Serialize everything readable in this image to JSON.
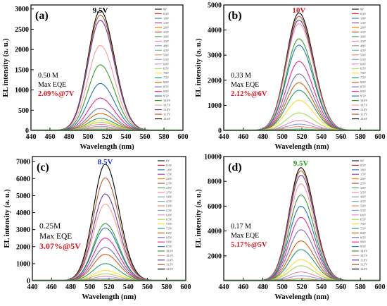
{
  "chart_data": [
    {
      "type": "line",
      "panel_label": "(a)",
      "xlabel": "Wavelength (nm)",
      "ylabel": "EL intensity (a. u.)",
      "xlim": [
        440,
        600
      ],
      "ylim": [
        0,
        3100
      ],
      "xticks": [
        440,
        460,
        480,
        500,
        520,
        540,
        560,
        580,
        600
      ],
      "yticks": [
        0,
        500,
        1000,
        1500,
        2000,
        2500,
        3000
      ],
      "peak_label": "9.5V",
      "peak_label_color": "#000000",
      "peak_wavelength": 513,
      "width": 13,
      "annotations": [
        {
          "text": "0.50 M",
          "color": "#000000",
          "style": "normal"
        },
        {
          "text": "Max EQE",
          "color": "#000000",
          "style": "normal"
        },
        {
          "text": "2.09%@7V",
          "color": "#e0141e",
          "style": "bold"
        }
      ],
      "legend": [
        "0V",
        "0.5V",
        "1.0V",
        "1.5V",
        "2.0V",
        "2.5V",
        "3.0V",
        "3.5V",
        "4.0V",
        "4.5V",
        "5.0V",
        "5.5V",
        "6.0V",
        "6.5V",
        "7.0V",
        "7.5V",
        "8.0V",
        "8.5V",
        "9.0V",
        "9.5V",
        "10.0V",
        "10.5V",
        "11.0V",
        "11.5V",
        "12.0V"
      ],
      "colors": [
        "#222222",
        "#e41a1c",
        "#377eb8",
        "#984ea3",
        "#ff7f00",
        "#a65628",
        "#4daf4a",
        "#f781bf",
        "#999999",
        "#66c2a5",
        "#fc8d62",
        "#8da0cb",
        "#e78ac3",
        "#a6d854",
        "#ffd92f",
        "#1b9e77",
        "#d95f02",
        "#7570b3",
        "#e7298a",
        "#1f78b4",
        "#33a02c",
        "#fb9a99",
        "#6a3d9a",
        "#b15928",
        "#000000"
      ],
      "series": [
        {
          "name": "12.0V",
          "peak": 2960
        },
        {
          "name": "11.5V",
          "peak": 2850
        },
        {
          "name": "11.0V",
          "peak": 2720
        },
        {
          "name": "10.5V",
          "peak": 2100
        },
        {
          "name": "10.0V",
          "peak": 1620
        },
        {
          "name": "9.5V",
          "peak": 1160
        },
        {
          "name": "9.0V",
          "peak": 800
        },
        {
          "name": "8.5V",
          "peak": 550
        },
        {
          "name": "8.0V",
          "peak": 420
        },
        {
          "name": "7.5V",
          "peak": 300
        },
        {
          "name": "7.0V",
          "peak": 240
        },
        {
          "name": "6.5V",
          "peak": 200
        },
        {
          "name": "6.0V",
          "peak": 150
        },
        {
          "name": "5.5V",
          "peak": 100
        },
        {
          "name": "5.0V",
          "peak": 60
        },
        {
          "name": "4.5V",
          "peak": 30
        },
        {
          "name": "4.0V",
          "peak": 10
        }
      ]
    },
    {
      "type": "line",
      "panel_label": "(b)",
      "xlabel": "Wavelength (nm)",
      "ylabel": "EL intensity (a. u.)",
      "xlim": [
        440,
        600
      ],
      "ylim": [
        0,
        5000
      ],
      "xticks": [
        440,
        460,
        480,
        500,
        520,
        540,
        560,
        580,
        600
      ],
      "yticks": [
        0,
        1000,
        2000,
        3000,
        4000,
        5000
      ],
      "peak_label": "10V",
      "peak_label_color": "#e0141e",
      "peak_wavelength": 517,
      "width": 13,
      "annotations": [
        {
          "text": "0.33 M",
          "color": "#000000",
          "style": "normal"
        },
        {
          "text": "Max EQE",
          "color": "#000000",
          "style": "normal"
        },
        {
          "text": "2.12%@6V",
          "color": "#e0141e",
          "style": "bold"
        }
      ],
      "legend": [
        "0V",
        "0.5V",
        "1.0V",
        "1.5V",
        "2.0V",
        "2.5V",
        "3.0V",
        "3.5V",
        "4.0V",
        "4.5V",
        "5.0V",
        "5.5V",
        "6.0V",
        "6.5V",
        "7.0V",
        "7.5V",
        "8.0V",
        "8.5V",
        "9.0V",
        "9.5V",
        "10.0V",
        "10.5V",
        "11.0V",
        "11.5V",
        "12.0V"
      ],
      "colors": [
        "#222222",
        "#e41a1c",
        "#377eb8",
        "#984ea3",
        "#ff7f00",
        "#a65628",
        "#4daf4a",
        "#f781bf",
        "#999999",
        "#66c2a5",
        "#fc8d62",
        "#8da0cb",
        "#e78ac3",
        "#a6d854",
        "#ffd92f",
        "#1b9e77",
        "#d95f02",
        "#7570b3",
        "#e7298a",
        "#1f78b4",
        "#33a02c",
        "#fb9a99",
        "#6a3d9a",
        "#b15928",
        "#000000"
      ],
      "series": [
        {
          "name": "12.0V",
          "peak": 4680
        },
        {
          "name": "11.5V",
          "peak": 4550
        },
        {
          "name": "11.0V",
          "peak": 4400
        },
        {
          "name": "10.5V",
          "peak": 4250
        },
        {
          "name": "10.0V",
          "peak": 3650
        },
        {
          "name": "9.5V",
          "peak": 3400
        },
        {
          "name": "9.0V",
          "peak": 2750
        },
        {
          "name": "8.5V",
          "peak": 2250
        },
        {
          "name": "8.0V",
          "peak": 1900
        },
        {
          "name": "7.5V",
          "peak": 1600
        },
        {
          "name": "7.0V",
          "peak": 1200
        },
        {
          "name": "6.5V",
          "peak": 700
        },
        {
          "name": "6.0V",
          "peak": 400
        },
        {
          "name": "5.5V",
          "peak": 250
        },
        {
          "name": "5.0V",
          "peak": 150
        },
        {
          "name": "4.5V",
          "peak": 60
        },
        {
          "name": "4.0V",
          "peak": 20
        }
      ]
    },
    {
      "type": "line",
      "panel_label": "(c)",
      "xlabel": "Wavelength (nm)",
      "ylabel": "EL intensity (a. u.)",
      "xlim": [
        440,
        600
      ],
      "ylim": [
        0,
        7300
      ],
      "xticks": [
        440,
        460,
        480,
        500,
        520,
        540,
        560,
        580,
        600
      ],
      "yticks": [
        0,
        1000,
        2000,
        3000,
        4000,
        5000,
        6000,
        7000
      ],
      "peak_label": "8.5V",
      "peak_label_color": "#1a2fd6",
      "peak_wavelength": 516,
      "width": 12.5,
      "annotations": [
        {
          "text": "0.25M",
          "color": "#000000",
          "style": "big"
        },
        {
          "text": "Max EQE",
          "color": "#000000",
          "style": "big"
        },
        {
          "text": "3.07%@5V",
          "color": "#e0141e",
          "style": "bigred"
        }
      ],
      "legend": [
        "0V",
        "0.5V",
        "1.0V",
        "1.5V",
        "2.0V",
        "2.5V",
        "3.0V",
        "3.5V",
        "4.0V",
        "4.5V",
        "5.0V",
        "5.5V",
        "6.0V",
        "6.5V",
        "7.0V",
        "7.5V",
        "8.0V",
        "8.5V",
        "9.0V",
        "9.5V",
        "10.0V",
        "10.5V",
        "11.0V",
        "11.5V",
        "12.0V"
      ],
      "colors": [
        "#222222",
        "#e41a1c",
        "#377eb8",
        "#984ea3",
        "#ff7f00",
        "#a65628",
        "#4daf4a",
        "#f781bf",
        "#999999",
        "#66c2a5",
        "#fc8d62",
        "#8da0cb",
        "#e78ac3",
        "#a6d854",
        "#ffd92f",
        "#1b9e77",
        "#d95f02",
        "#7570b3",
        "#e7298a",
        "#1f78b4",
        "#33a02c",
        "#fb9a99",
        "#6a3d9a",
        "#b15928",
        "#000000"
      ],
      "series": [
        {
          "name": "12.0V",
          "peak": 6850
        },
        {
          "name": "11.5V",
          "peak": 6050
        },
        {
          "name": "11.0V",
          "peak": 5100
        },
        {
          "name": "10.5V",
          "peak": 4500
        },
        {
          "name": "10.0V",
          "peak": 3350
        },
        {
          "name": "9.5V",
          "peak": 3100
        },
        {
          "name": "9.0V",
          "peak": 2500
        },
        {
          "name": "8.5V",
          "peak": 1950
        },
        {
          "name": "8.0V",
          "peak": 1550
        },
        {
          "name": "7.5V",
          "peak": 1000
        },
        {
          "name": "7.0V",
          "peak": 600
        },
        {
          "name": "6.5V",
          "peak": 400
        },
        {
          "name": "6.0V",
          "peak": 250
        },
        {
          "name": "5.5V",
          "peak": 120
        },
        {
          "name": "5.0V",
          "peak": 50
        }
      ]
    },
    {
      "type": "line",
      "panel_label": "(d)",
      "xlabel": "Wavelength (nm)",
      "ylabel": "EL intensity (a. u.)",
      "xlim": [
        440,
        600
      ],
      "ylim": [
        0,
        10000
      ],
      "xticks": [
        440,
        460,
        480,
        500,
        520,
        540,
        560,
        580,
        600
      ],
      "yticks": [
        2000,
        4000,
        6000,
        8000,
        10000
      ],
      "peak_label": "9.5V",
      "peak_label_color": "#1a9e1a",
      "peak_wavelength": 519,
      "width": 12,
      "annotations": [
        {
          "text": "0.17 M",
          "color": "#000000",
          "style": "normal"
        },
        {
          "text": "Max EQE",
          "color": "#000000",
          "style": "normal"
        },
        {
          "text": "5.17%@5V",
          "color": "#e0141e",
          "style": "bold"
        }
      ],
      "legend": [
        "0V",
        "0.5V",
        "1.0V",
        "1.5V",
        "2.0V",
        "2.5V",
        "3.0V",
        "3.5V",
        "4.0V",
        "4.5V",
        "5.0V",
        "5.5V",
        "6.0V",
        "6.5V",
        "7.0V",
        "7.5V",
        "8.0V",
        "8.5V",
        "9.0V",
        "9.5V",
        "10.0V",
        "10.5V",
        "11.0V",
        "11.5V",
        "12.0V"
      ],
      "colors": [
        "#222222",
        "#e41a1c",
        "#377eb8",
        "#984ea3",
        "#ff7f00",
        "#a65628",
        "#4daf4a",
        "#f781bf",
        "#999999",
        "#66c2a5",
        "#fc8d62",
        "#8da0cb",
        "#e78ac3",
        "#a6d854",
        "#ffd92f",
        "#1b9e77",
        "#d95f02",
        "#7570b3",
        "#e7298a",
        "#1f78b4",
        "#33a02c",
        "#fb9a99",
        "#6a3d9a",
        "#b15928",
        "#000000"
      ],
      "series": [
        {
          "name": "12.0V",
          "peak": 9100
        },
        {
          "name": "11.5V",
          "peak": 8850
        },
        {
          "name": "11.0V",
          "peak": 8500
        },
        {
          "name": "10.5V",
          "peak": 7800
        },
        {
          "name": "10.0V",
          "peak": 6900
        },
        {
          "name": "9.5V",
          "peak": 6000
        },
        {
          "name": "9.0V",
          "peak": 5100
        },
        {
          "name": "8.5V",
          "peak": 4100
        },
        {
          "name": "8.0V",
          "peak": 3200
        },
        {
          "name": "7.5V",
          "peak": 2500
        },
        {
          "name": "7.0V",
          "peak": 1700
        },
        {
          "name": "6.5V",
          "peak": 1200
        },
        {
          "name": "6.0V",
          "peak": 700
        },
        {
          "name": "5.5V",
          "peak": 400
        },
        {
          "name": "5.0V",
          "peak": 150
        }
      ]
    }
  ]
}
